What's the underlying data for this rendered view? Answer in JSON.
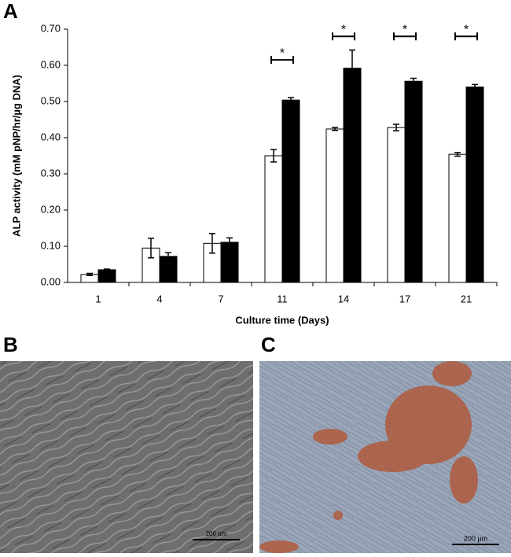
{
  "chart_data": {
    "type": "bar",
    "panel_label": "A",
    "x_label": "Culture time (Days)",
    "y_label": "ALP activity (mM pNP/hr/µg DNA)",
    "categories": [
      "1",
      "4",
      "7",
      "11",
      "14",
      "17",
      "21"
    ],
    "series": [
      {
        "color": "#ffffff",
        "values": [
          0.022,
          0.095,
          0.108,
          0.35,
          0.424,
          0.428,
          0.354
        ],
        "errors": [
          0.003,
          0.027,
          0.027,
          0.017,
          0.004,
          0.009,
          0.005
        ]
      },
      {
        "color": "#000000",
        "values": [
          0.035,
          0.072,
          0.111,
          0.504,
          0.592,
          0.556,
          0.54
        ],
        "errors": [
          0.002,
          0.01,
          0.012,
          0.007,
          0.05,
          0.008,
          0.007
        ]
      }
    ],
    "ylim": [
      0,
      0.7
    ],
    "yticks": [
      {
        "value": 0,
        "label": "0.00"
      },
      {
        "value": 0.1,
        "label": "0.10"
      },
      {
        "value": 0.2,
        "label": "0.20"
      },
      {
        "value": 0.3,
        "label": "0.30"
      },
      {
        "value": 0.4,
        "label": "0.40"
      },
      {
        "value": 0.5,
        "label": "0.50"
      },
      {
        "value": 0.6,
        "label": "0.60"
      },
      {
        "value": 0.7,
        "label": "0.70"
      }
    ],
    "significance": [
      {
        "category_index": 3,
        "y": 0.615,
        "label": "*"
      },
      {
        "category_index": 4,
        "y": 0.68,
        "label": "*"
      },
      {
        "category_index": 5,
        "y": 0.68,
        "label": "*"
      },
      {
        "category_index": 6,
        "y": 0.68,
        "label": "*"
      }
    ]
  },
  "images": [
    {
      "label": "B",
      "scale_bar": "200 µm"
    },
    {
      "label": "C",
      "scale_bar": "200 µm"
    }
  ]
}
